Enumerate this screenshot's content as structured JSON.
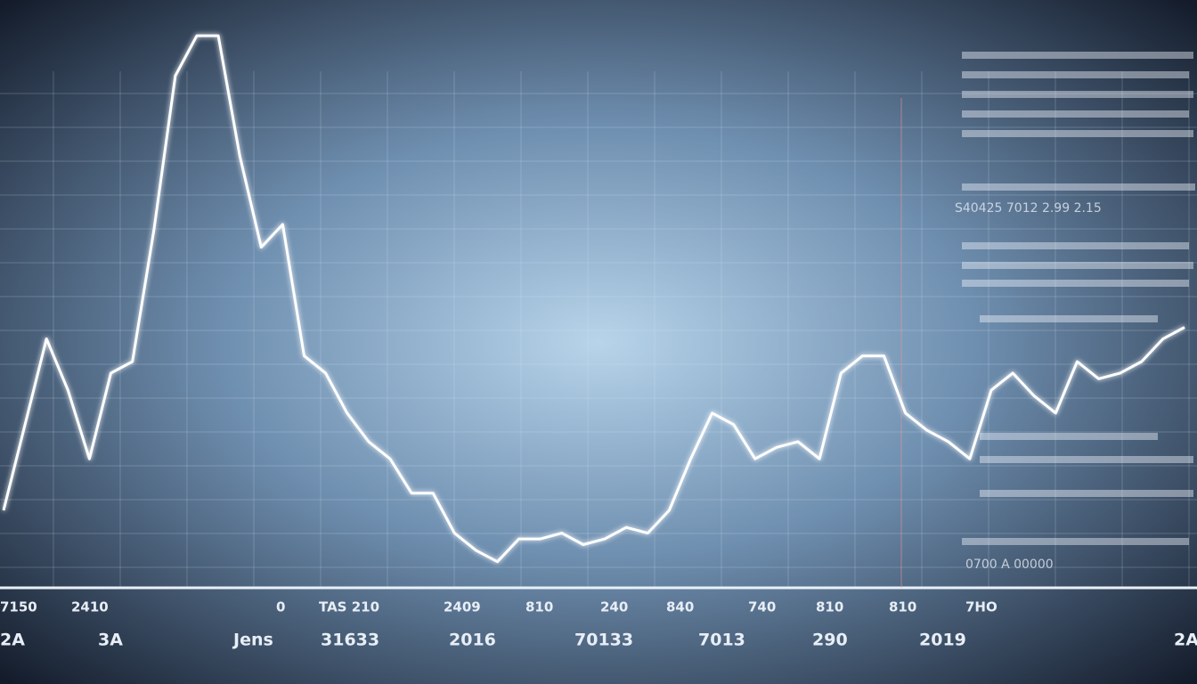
{
  "chart_data": {
    "type": "line",
    "color": "#ffffff",
    "values": [
      12,
      27,
      42,
      33,
      21,
      36,
      38,
      61,
      88,
      95,
      95,
      74,
      58,
      62,
      39,
      36,
      29,
      24,
      21,
      15,
      15,
      8,
      5,
      3,
      7,
      7,
      8,
      6,
      7,
      9,
      8,
      12,
      21,
      29,
      27,
      21,
      23,
      24,
      21,
      36,
      39,
      39,
      29,
      26,
      24,
      21,
      33,
      36,
      32,
      29,
      38,
      35,
      36,
      38,
      42,
      44
    ],
    "ylim": [
      0,
      100
    ],
    "grid": true,
    "x_labels_top": [
      "7150",
      "2410",
      "0",
      "TAS 210",
      "2409",
      "810",
      "240",
      "840",
      "740",
      "810",
      "810",
      "7HO"
    ],
    "x_labels_bottom": [
      "2A",
      "3A",
      "Jens",
      "31633",
      "2016",
      "70133",
      "7013",
      "290",
      "2019",
      "2A"
    ],
    "annotations": [
      "S40425 7012 2.99 2.15",
      "0700 A 00000"
    ]
  }
}
